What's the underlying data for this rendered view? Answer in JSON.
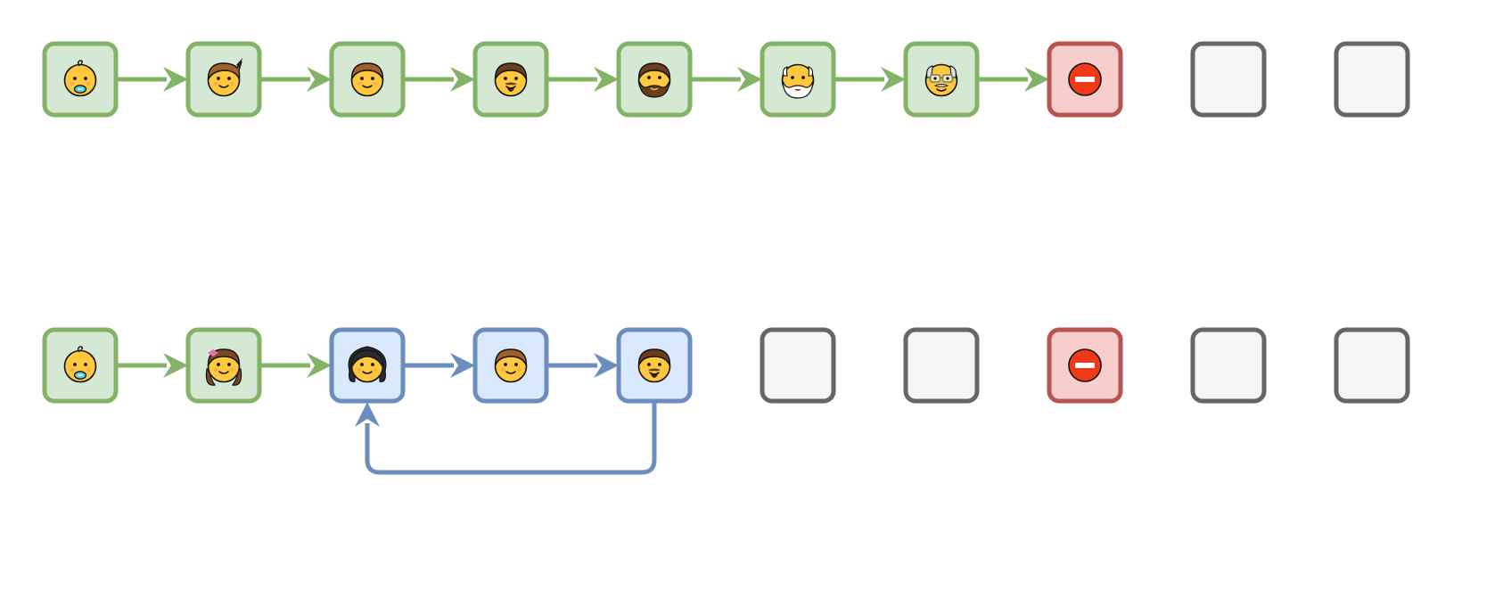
{
  "styles": {
    "green": {
      "fill": "#d5e8d4",
      "stroke": "#82b366"
    },
    "blue": {
      "fill": "#dae8fc",
      "stroke": "#6c8ebf"
    },
    "red": {
      "fill": "#f8cecc",
      "stroke": "#b85450"
    },
    "gray": {
      "fill": "#f5f5f5",
      "stroke": "#666666"
    }
  },
  "skin": "#ffc83d",
  "skin_outline": "#111111",
  "rows": [
    {
      "name": "row-1",
      "nodes": [
        {
          "style": "green",
          "icon": "baby-icon"
        },
        {
          "style": "green",
          "icon": "boy-icon"
        },
        {
          "style": "green",
          "icon": "young-man-icon"
        },
        {
          "style": "green",
          "icon": "man-goatee-icon"
        },
        {
          "style": "green",
          "icon": "man-beard-icon"
        },
        {
          "style": "green",
          "icon": "old-man-white-beard-icon"
        },
        {
          "style": "green",
          "icon": "old-man-glasses-icon"
        },
        {
          "style": "red",
          "icon": "no-entry-icon"
        },
        {
          "style": "gray",
          "icon": ""
        },
        {
          "style": "gray",
          "icon": ""
        }
      ],
      "edges": [
        {
          "from": 0,
          "to": 1,
          "style": "green"
        },
        {
          "from": 1,
          "to": 2,
          "style": "green"
        },
        {
          "from": 2,
          "to": 3,
          "style": "green"
        },
        {
          "from": 3,
          "to": 4,
          "style": "green"
        },
        {
          "from": 4,
          "to": 5,
          "style": "green"
        },
        {
          "from": 5,
          "to": 6,
          "style": "green"
        },
        {
          "from": 6,
          "to": 7,
          "style": "green"
        }
      ]
    },
    {
      "name": "row-2",
      "nodes": [
        {
          "style": "green",
          "icon": "baby-icon"
        },
        {
          "style": "green",
          "icon": "girl-icon"
        },
        {
          "style": "blue",
          "icon": "woman-icon"
        },
        {
          "style": "blue",
          "icon": "young-man-icon"
        },
        {
          "style": "blue",
          "icon": "man-goatee-icon"
        },
        {
          "style": "gray",
          "icon": ""
        },
        {
          "style": "gray",
          "icon": ""
        },
        {
          "style": "red",
          "icon": "no-entry-icon"
        },
        {
          "style": "gray",
          "icon": ""
        },
        {
          "style": "gray",
          "icon": ""
        }
      ],
      "edges": [
        {
          "from": 0,
          "to": 1,
          "style": "green"
        },
        {
          "from": 1,
          "to": 2,
          "style": "green"
        },
        {
          "from": 2,
          "to": 3,
          "style": "blue"
        },
        {
          "from": 3,
          "to": 4,
          "style": "blue"
        },
        {
          "from": 4,
          "to": 2,
          "style": "blue",
          "kind": "loop-back"
        }
      ]
    }
  ]
}
